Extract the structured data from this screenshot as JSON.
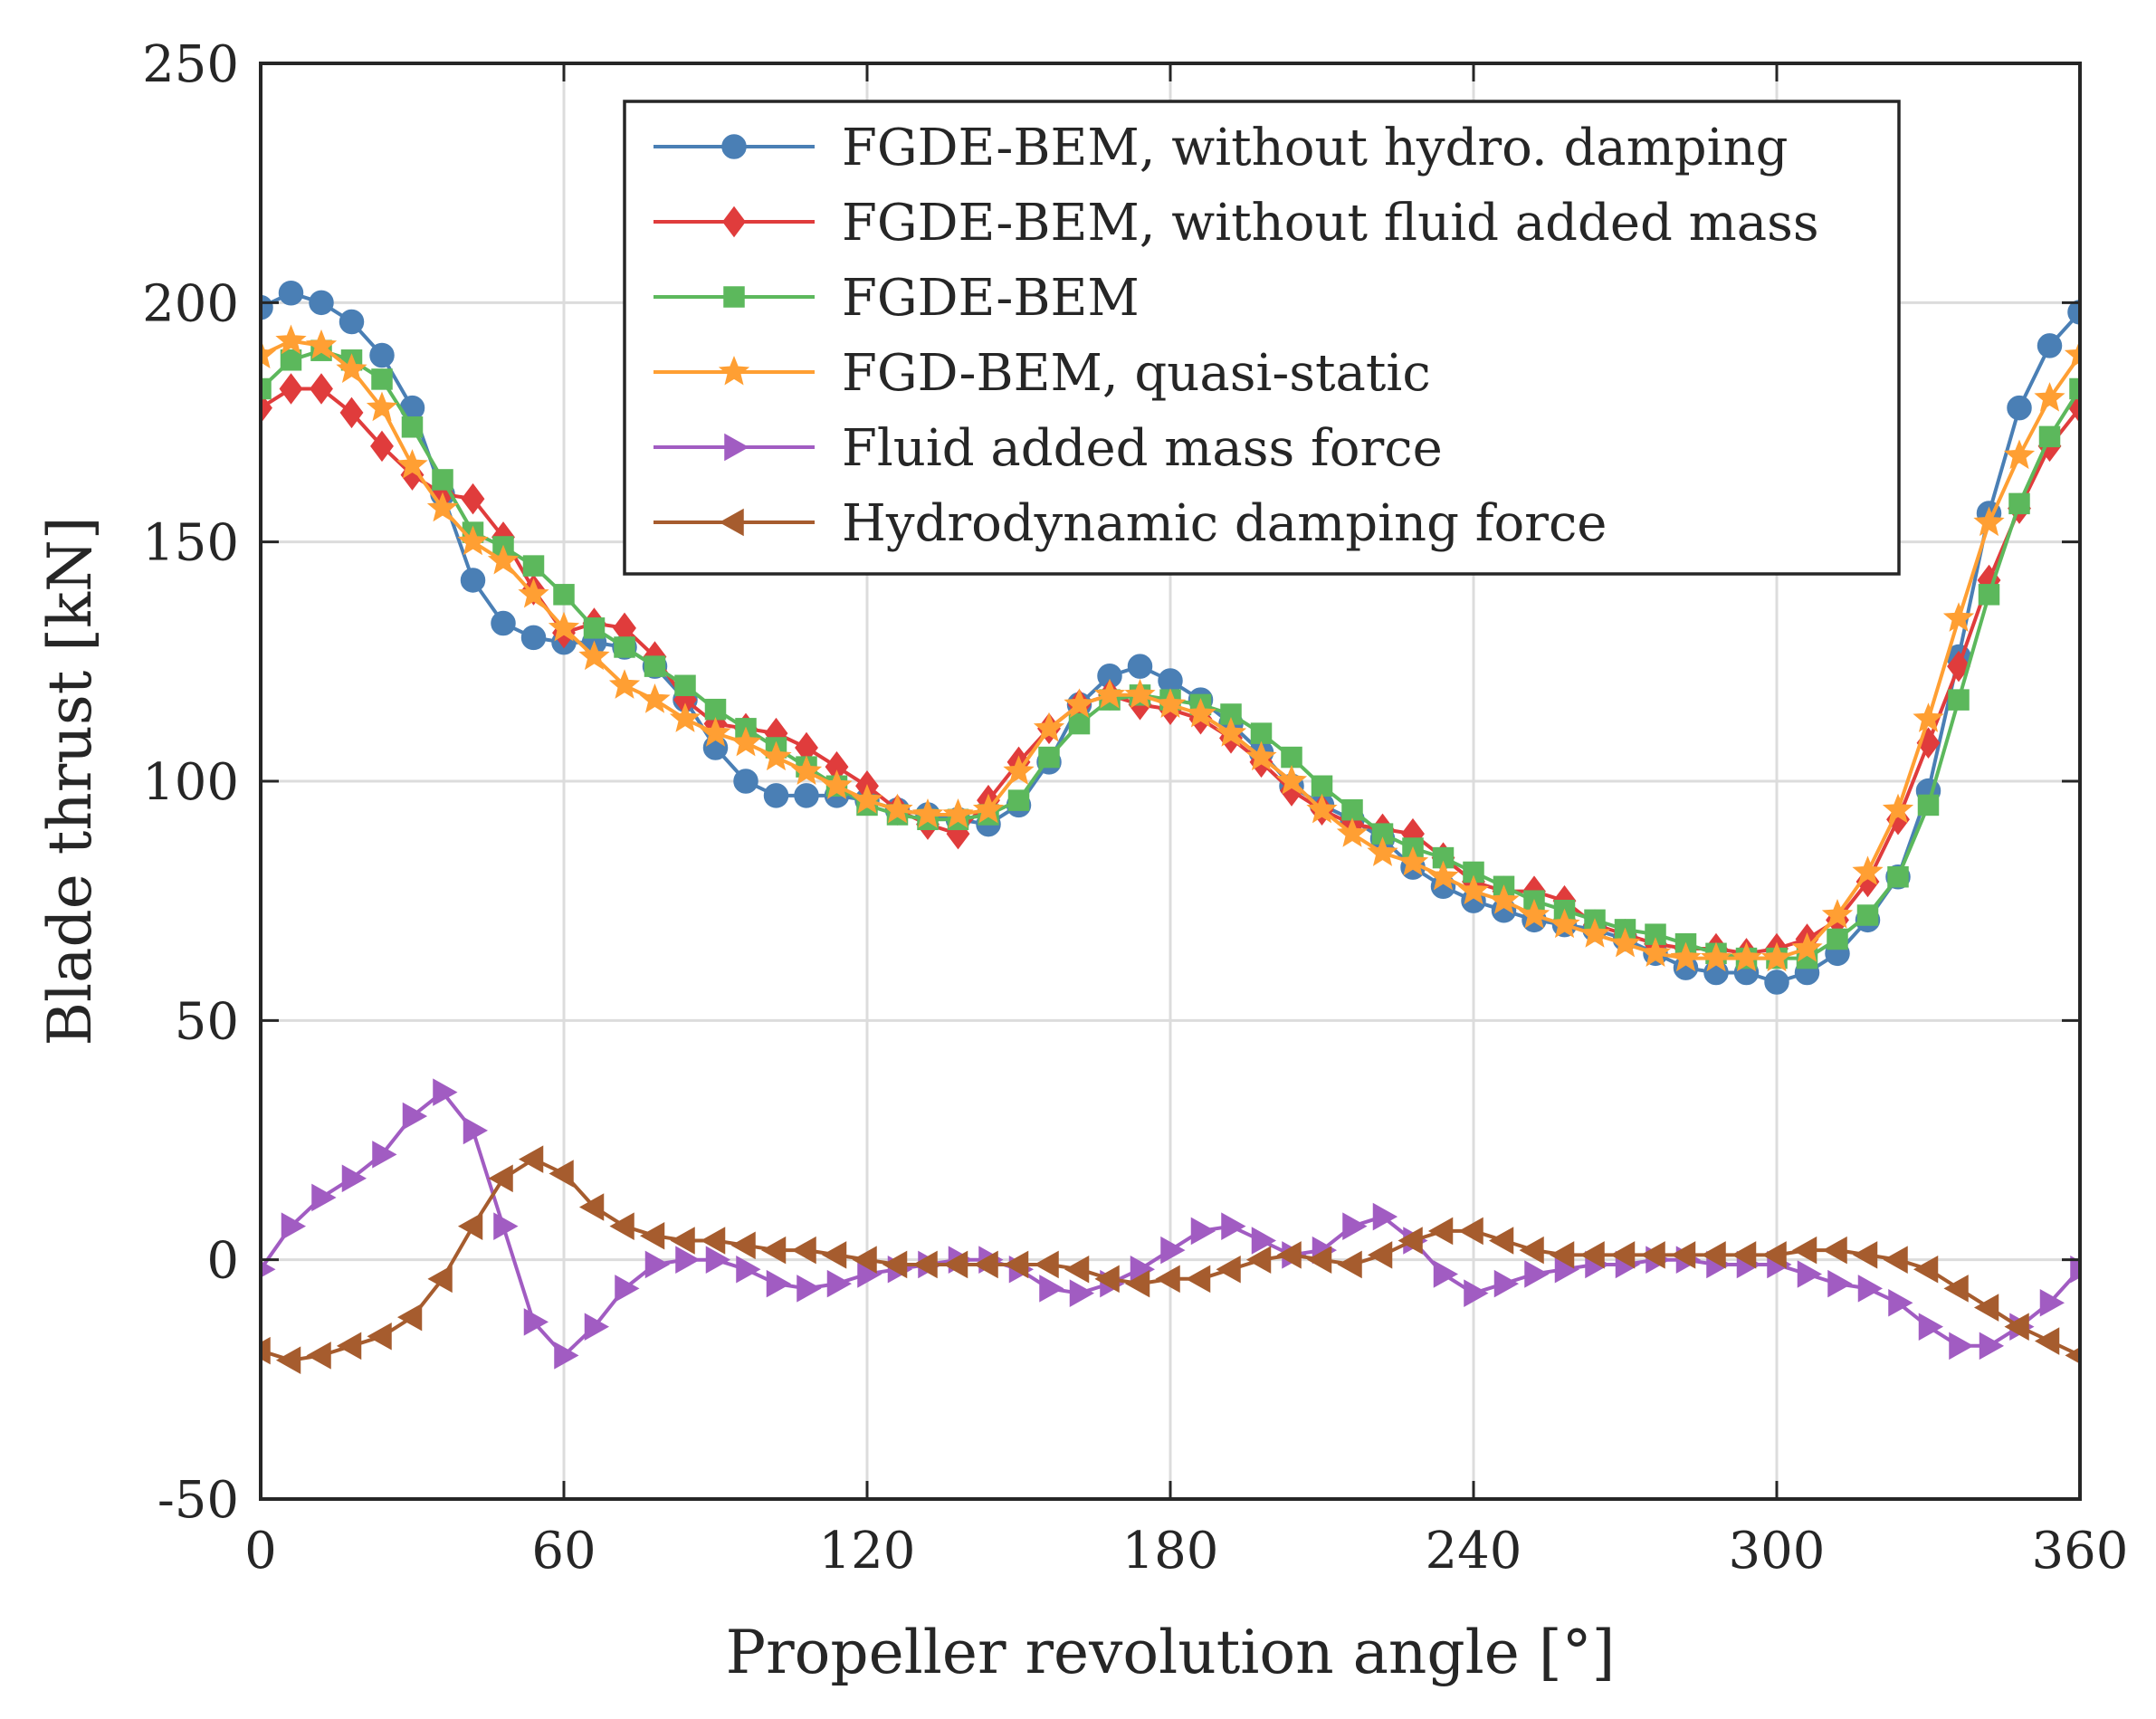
{
  "chart_data": {
    "type": "line",
    "title": "",
    "xlabel": "Propeller revolution angle [°]",
    "ylabel": "Blade thrust [kN]",
    "xlim": [
      0,
      360
    ],
    "ylim": [
      -50,
      250
    ],
    "xticks": [
      0,
      60,
      120,
      180,
      240,
      300,
      360
    ],
    "xtick_labels": [
      "0",
      "60",
      "120",
      "180",
      "240",
      "300",
      "360"
    ],
    "yticks": [
      -50,
      0,
      50,
      100,
      150,
      200,
      250
    ],
    "ytick_labels": [
      "-50",
      "0",
      "50",
      "100",
      "150",
      "200",
      "250"
    ],
    "grid": true,
    "legend_position": "top-right",
    "x": [
      0,
      6,
      12,
      18,
      24,
      30,
      36,
      42,
      48,
      54,
      60,
      66,
      72,
      78,
      84,
      90,
      96,
      102,
      108,
      114,
      120,
      126,
      132,
      138,
      144,
      150,
      156,
      162,
      168,
      174,
      180,
      186,
      192,
      198,
      204,
      210,
      216,
      222,
      228,
      234,
      240,
      246,
      252,
      258,
      264,
      270,
      276,
      282,
      288,
      294,
      300,
      306,
      312,
      318,
      324,
      330,
      336,
      342,
      348,
      354,
      360
    ],
    "series": [
      {
        "name": "FGDE-BEM, without hydro. damping",
        "color": "#4a7fb5",
        "marker": "circle",
        "values": [
          199,
          202,
          200,
          196,
          189,
          178,
          160,
          142,
          133,
          130,
          129,
          129,
          128,
          124,
          117,
          107,
          100,
          97,
          97,
          97,
          96,
          94,
          93,
          92,
          91,
          95,
          104,
          116,
          122,
          124,
          121,
          117,
          112,
          106,
          99,
          95,
          92,
          88,
          82,
          78,
          75,
          73,
          71,
          70,
          69,
          67,
          64,
          61,
          60,
          60,
          58,
          60,
          64,
          71,
          80,
          98,
          126,
          156,
          178,
          191,
          198
        ]
      },
      {
        "name": "FGDE-BEM, without fluid added mass",
        "color": "#e03c3c",
        "marker": "diamond",
        "values": [
          178,
          182,
          182,
          177,
          170,
          164,
          160,
          159,
          151,
          140,
          131,
          133,
          132,
          126,
          117,
          112,
          111,
          110,
          107,
          103,
          99,
          94,
          91,
          89,
          96,
          104,
          111,
          116,
          118,
          116,
          115,
          113,
          109,
          104,
          98,
          94,
          91,
          90,
          89,
          84,
          79,
          77,
          77,
          75,
          70,
          68,
          66,
          65,
          65,
          64,
          65,
          67,
          71,
          79,
          92,
          108,
          124,
          142,
          157,
          170,
          178
        ]
      },
      {
        "name": "FGDE-BEM",
        "color": "#5cb85c",
        "marker": "square",
        "values": [
          182,
          188,
          190,
          188,
          184,
          174,
          163,
          152,
          149,
          145,
          139,
          132,
          128,
          124,
          120,
          115,
          111,
          107,
          103,
          99,
          95,
          93,
          92,
          92,
          93,
          96,
          105,
          112,
          117,
          118,
          117,
          116,
          114,
          110,
          105,
          99,
          94,
          89,
          86,
          84,
          81,
          78,
          75,
          73,
          71,
          69,
          68,
          66,
          64,
          63,
          63,
          63,
          67,
          72,
          80,
          95,
          117,
          139,
          158,
          172,
          182
        ]
      },
      {
        "name": "FGD-BEM, quasi-static",
        "color": "#ff9f33",
        "marker": "star",
        "values": [
          189,
          192,
          191,
          186,
          178,
          166,
          157,
          150,
          146,
          139,
          132,
          126,
          120,
          117,
          113,
          110,
          108,
          105,
          102,
          99,
          96,
          94,
          93,
          93,
          94,
          102,
          111,
          116,
          118,
          118,
          116,
          114,
          110,
          105,
          100,
          94,
          89,
          85,
          83,
          80,
          77,
          75,
          72,
          70,
          68,
          66,
          64,
          63,
          63,
          63,
          63,
          65,
          72,
          81,
          94,
          113,
          134,
          154,
          168,
          180,
          189
        ]
      },
      {
        "name": "Fluid added mass force",
        "color": "#a15cc2",
        "marker": "triangle-right",
        "values": [
          -2,
          7,
          13,
          17,
          22,
          30,
          35,
          27,
          7,
          -13,
          -20,
          -14,
          -6,
          -1,
          0,
          0,
          -2,
          -5,
          -6,
          -5,
          -3,
          -2,
          -1,
          0,
          0,
          -2,
          -6,
          -7,
          -5,
          -2,
          2,
          6,
          7,
          4,
          1,
          2,
          7,
          9,
          4,
          -3,
          -7,
          -5,
          -3,
          -2,
          -1,
          -1,
          0,
          0,
          -1,
          -1,
          -1,
          -3,
          -5,
          -6,
          -9,
          -14,
          -18,
          -18,
          -14,
          -9,
          -2
        ]
      },
      {
        "name": "Hydrodynamic damping force",
        "color": "#a65c2e",
        "marker": "triangle-left",
        "values": [
          -19,
          -21,
          -20,
          -18,
          -16,
          -12,
          -4,
          7,
          17,
          21,
          18,
          11,
          7,
          5,
          4,
          4,
          3,
          2,
          2,
          1,
          0,
          -1,
          -1,
          -1,
          -1,
          -1,
          -1,
          -2,
          -4,
          -5,
          -4,
          -4,
          -2,
          0,
          1,
          0,
          -1,
          1,
          4,
          6,
          6,
          4,
          2,
          1,
          1,
          1,
          1,
          1,
          1,
          1,
          1,
          2,
          2,
          1,
          0,
          -2,
          -6,
          -10,
          -14,
          -17,
          -20
        ]
      }
    ]
  }
}
